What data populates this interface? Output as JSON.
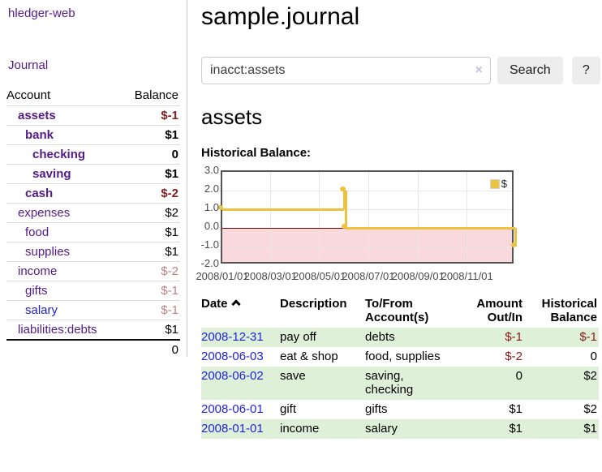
{
  "brand": "hledger-web",
  "nav": {
    "journal": "Journal"
  },
  "sidebar": {
    "account_header": "Account",
    "balance_header": "Balance",
    "accounts": [
      {
        "name": "assets",
        "level": 1,
        "bold": true,
        "balance": "$-1",
        "neg": "strong"
      },
      {
        "name": "bank",
        "level": 2,
        "bold": true,
        "balance": "$1",
        "neg": ""
      },
      {
        "name": "checking",
        "level": 3,
        "bold": true,
        "balance": "0",
        "neg": ""
      },
      {
        "name": "saving",
        "level": 3,
        "bold": true,
        "balance": "$1",
        "neg": ""
      },
      {
        "name": "cash",
        "level": 2,
        "bold": true,
        "balance": "$-2",
        "neg": "strong"
      },
      {
        "name": "expenses",
        "level": 1,
        "bold": false,
        "balance": "$2",
        "neg": ""
      },
      {
        "name": "food",
        "level": 2,
        "bold": false,
        "balance": "$1",
        "neg": ""
      },
      {
        "name": "supplies",
        "level": 2,
        "bold": false,
        "balance": "$1",
        "neg": ""
      },
      {
        "name": "income",
        "level": 1,
        "bold": false,
        "balance": "$-2",
        "neg": "muted"
      },
      {
        "name": "gifts",
        "level": 2,
        "bold": false,
        "balance": "$-1",
        "neg": "muted"
      },
      {
        "name": "salary",
        "level": 2,
        "bold": false,
        "balance": "$-1",
        "neg": "muted",
        "link_color": "blue"
      },
      {
        "name": "liabilities:debts",
        "level": 1,
        "bold": false,
        "balance": "$1",
        "neg": ""
      }
    ],
    "total": "0"
  },
  "main": {
    "title": "sample.journal",
    "account_heading": "assets",
    "chart_label": "Historical Balance:"
  },
  "search": {
    "value": "inacct:assets",
    "clear_icon": "×",
    "button": "Search",
    "help_button": "?"
  },
  "chart_data": {
    "type": "line",
    "subtype": "step-after",
    "title": "Historical Balance",
    "xlim": [
      "2008-01-01",
      "2008-12-31"
    ],
    "ylim": [
      -2,
      3
    ],
    "y_ticks": [
      "3.0",
      "2.0",
      "1.0",
      "0.0",
      "-1.0",
      "-2.0"
    ],
    "x_ticks": [
      "2008/01/01",
      "2008/03/01",
      "2008/05/01",
      "2008/07/01",
      "2008/09/01",
      "2008/11/01"
    ],
    "grid": true,
    "legend_position": "top-right",
    "series": [
      {
        "name": "$",
        "color": "#edc240",
        "points": [
          [
            "2008-01-01",
            1
          ],
          [
            "2008-06-01",
            2
          ],
          [
            "2008-06-02",
            2
          ],
          [
            "2008-06-03",
            0
          ],
          [
            "2008-12-31",
            -1
          ]
        ]
      }
    ],
    "negative_region_color": "#f9d9dc",
    "zero_line_color": "#7e0000"
  },
  "register": {
    "columns": {
      "date": "Date",
      "description": "Description",
      "accounts": "To/From Account(s)",
      "amount": "Amount Out/In",
      "balance": "Historical Balance"
    },
    "rows": [
      {
        "date": "2008-12-31",
        "description": "pay off",
        "accounts": "debts",
        "amount": "$-1",
        "amount_neg": true,
        "balance": "$-1",
        "balance_neg": true
      },
      {
        "date": "2008-06-03",
        "description": "eat & shop",
        "accounts": "food, supplies",
        "amount": "$-2",
        "amount_neg": true,
        "balance": "0",
        "balance_neg": false
      },
      {
        "date": "2008-06-02",
        "description": "save",
        "accounts": "saving, checking",
        "amount": "0",
        "amount_neg": false,
        "balance": "$2",
        "balance_neg": false
      },
      {
        "date": "2008-06-01",
        "description": "gift",
        "accounts": "gifts",
        "amount": "$1",
        "amount_neg": false,
        "balance": "$2",
        "balance_neg": false
      },
      {
        "date": "2008-01-01",
        "description": "income",
        "accounts": "salary",
        "amount": "$1",
        "amount_neg": false,
        "balance": "$1",
        "balance_neg": false
      }
    ]
  }
}
